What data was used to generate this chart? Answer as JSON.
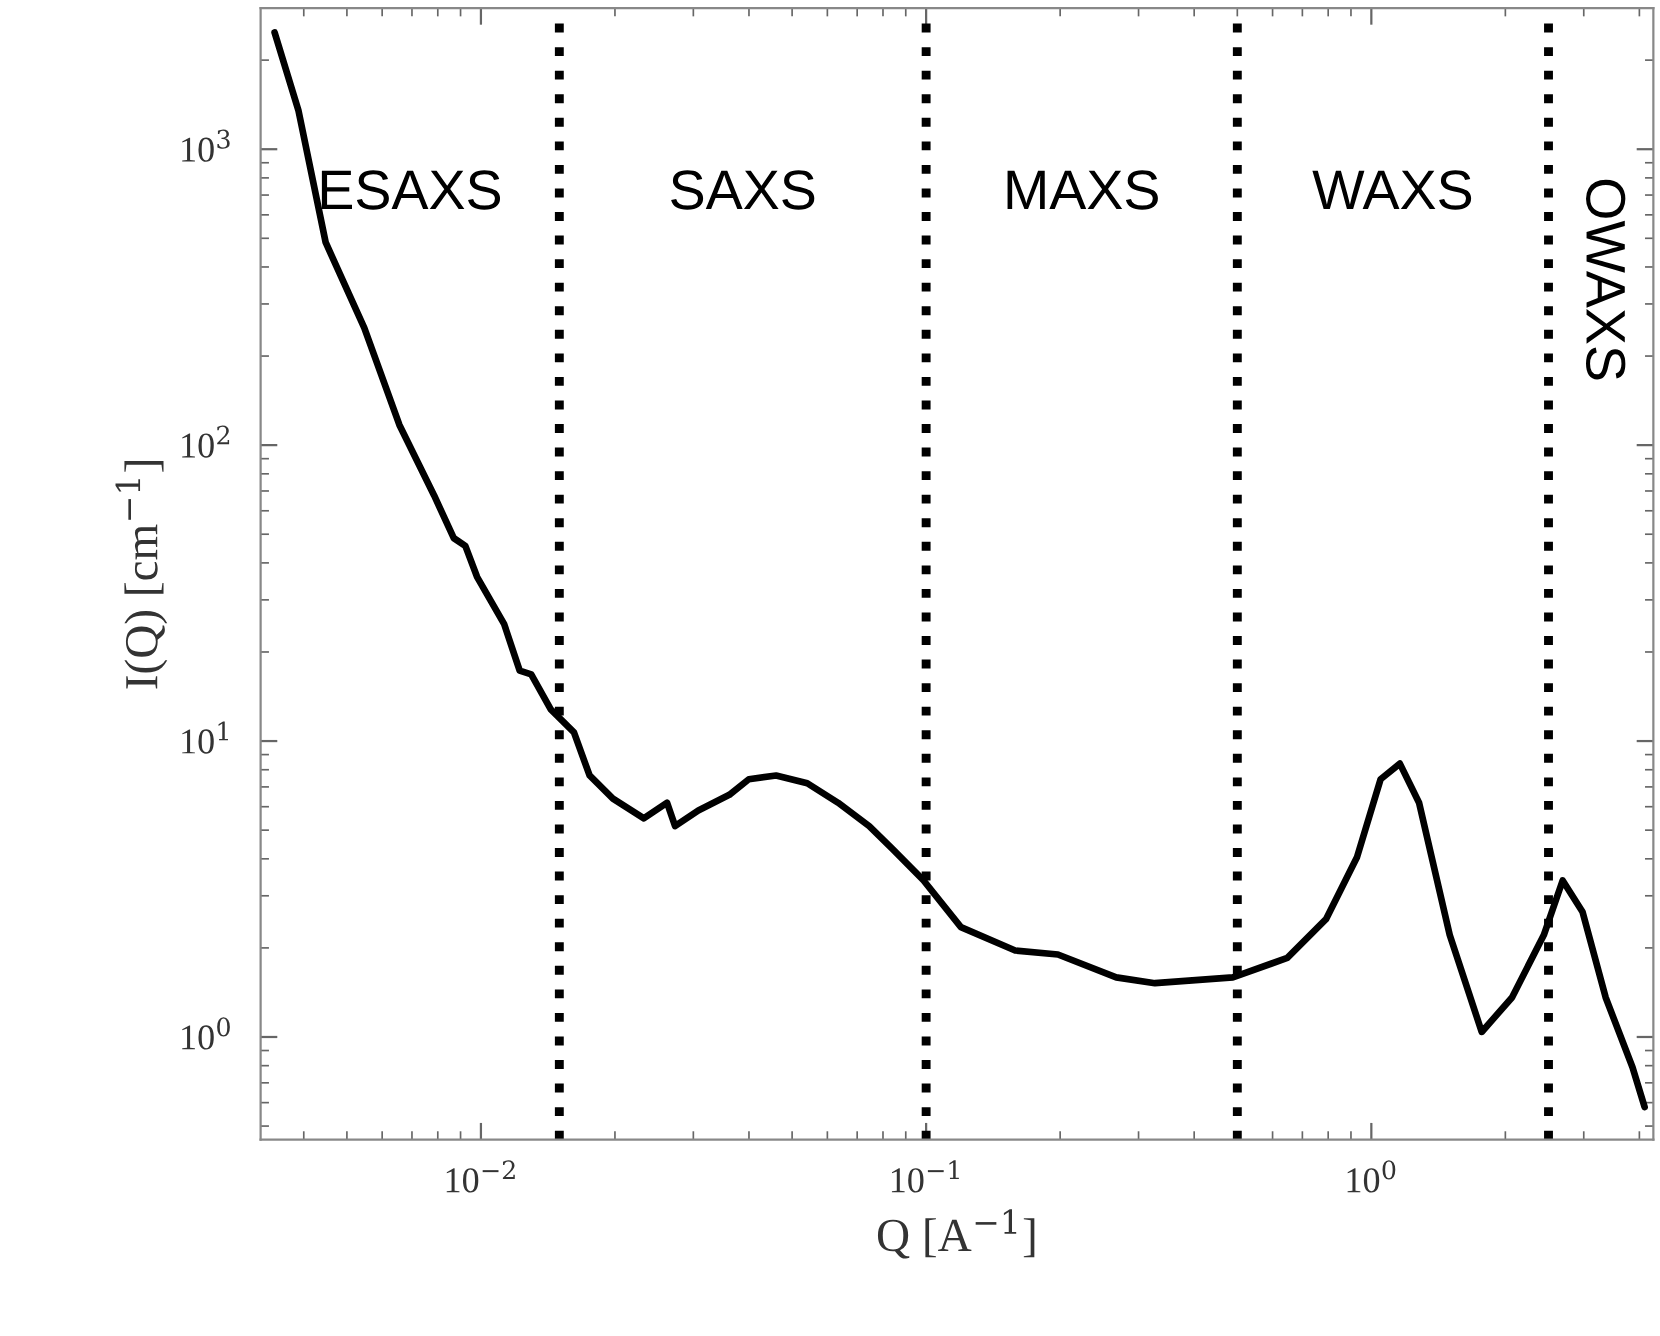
{
  "chart_data": {
    "type": "line",
    "xlabel": "Q [A$^{−1}$]",
    "ylabel": "I(Q) [cm$^{−1}$]",
    "log": "xy",
    "grid": false,
    "marker": "none",
    "line_style": "solid",
    "xlim": [
      0.0032,
      4.3
    ],
    "ylim": [
      0.45,
      3000
    ],
    "xticks": [
      {
        "value": 0.01,
        "label": "10$^{−2}$"
      },
      {
        "value": 0.1,
        "label": "10$^{−1}$"
      },
      {
        "value": 1,
        "label": "10$^{0}$"
      }
    ],
    "yticks": [
      {
        "value": 1,
        "label": "10$^{0}$"
      },
      {
        "value": 10,
        "label": "10$^{1}$"
      },
      {
        "value": 100,
        "label": "10$^{2}$"
      },
      {
        "value": 1000,
        "label": "10$^{3}$"
      }
    ],
    "series": [
      {
        "color": "#000000",
        "x": [
          0.00344,
          0.00389,
          0.00448,
          0.00547,
          0.00656,
          0.00785,
          0.00869,
          0.00923,
          0.0098,
          0.01127,
          0.01222,
          0.01297,
          0.01435,
          0.01524,
          0.01618,
          0.01754,
          0.01979,
          0.02323,
          0.02618,
          0.0273,
          0.03078,
          0.03614,
          0.03997,
          0.04603,
          0.05408,
          0.0634,
          0.0745,
          0.0841,
          0.0987,
          0.1197,
          0.1585,
          0.1977,
          0.2673,
          0.3266,
          0.4886,
          0.6475,
          0.791,
          0.929,
          1.049,
          1.159,
          1.28,
          1.5,
          1.77,
          2.07,
          2.44,
          2.69,
          2.98,
          3.36,
          3.86,
          4.11
        ],
        "values": [
          2480,
          1355,
          484,
          249,
          117,
          67.6,
          48.5,
          45.6,
          35.9,
          24.9,
          17.3,
          16.8,
          12.8,
          11.7,
          10.7,
          7.65,
          6.39,
          5.48,
          6.19,
          5.16,
          5.83,
          6.58,
          7.43,
          7.65,
          7.2,
          6.19,
          5.16,
          4.31,
          3.38,
          2.35,
          1.96,
          1.9,
          1.59,
          1.52,
          1.59,
          1.85,
          2.5,
          4.06,
          7.43,
          8.39,
          6.19,
          2.21,
          1.04,
          1.36,
          2.21,
          3.38,
          2.65,
          1.36,
          0.79,
          0.58
        ]
      }
    ],
    "ref_lines": [
      {
        "axis": "x",
        "value": 0.015,
        "color": "#000000",
        "line_style": "dotted"
      },
      {
        "axis": "x",
        "value": 0.1,
        "color": "#000000",
        "line_style": "dotted"
      },
      {
        "axis": "x",
        "value": 0.5,
        "color": "#000000",
        "line_style": "dotted"
      },
      {
        "axis": "x",
        "value": 2.5,
        "color": "#000000",
        "line_style": "dotted"
      }
    ],
    "annotations": [
      "ESAXS",
      "SAXS",
      "MAXS",
      "WAXS",
      "OWAXS"
    ]
  }
}
